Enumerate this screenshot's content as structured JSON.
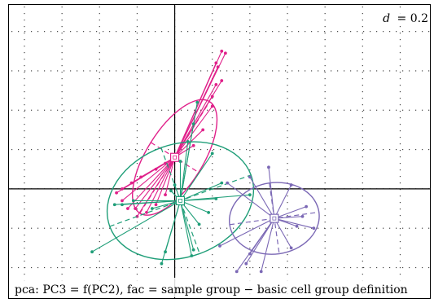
{
  "chart_data": {
    "type": "scatter",
    "title": "",
    "caption": "pca: PC3 = f(PC2), fac = sample group − basic cell group definition",
    "grid_label": "d = 0.2",
    "grid_label_var": "d",
    "grid_label_value": "= 0.2",
    "grid_step": 0.2,
    "xlim": [
      -0.93,
      1.38
    ],
    "ylim": [
      -0.58,
      0.96
    ],
    "grid": true,
    "series": [
      {
        "color": "#e0208a",
        "centroid": [
          0.0,
          0.16
        ],
        "ellipse": {
          "center": [
            0.0,
            0.16
          ],
          "semi_major": 0.35,
          "semi_minor": 0.15,
          "angle_deg": 58
        },
        "points": [
          [
            0.25,
            0.7
          ],
          [
            0.27,
            0.69
          ],
          [
            0.22,
            0.64
          ],
          [
            0.23,
            0.62
          ],
          [
            0.25,
            0.55
          ],
          [
            0.22,
            0.53
          ],
          [
            0.2,
            0.47
          ],
          [
            0.2,
            0.42
          ],
          [
            0.15,
            0.3
          ],
          [
            0.1,
            0.22
          ],
          [
            0.03,
            0.21
          ],
          [
            -0.05,
            0.13
          ],
          [
            -0.1,
            0.1
          ],
          [
            -0.18,
            0.06
          ],
          [
            -0.23,
            0.03
          ],
          [
            -0.28,
            0.0
          ],
          [
            -0.31,
            -0.02
          ],
          [
            -0.28,
            -0.06
          ],
          [
            -0.25,
            -0.1
          ],
          [
            -0.21,
            -0.1
          ],
          [
            -0.2,
            -0.14
          ],
          [
            -0.15,
            -0.12
          ],
          [
            -0.1,
            -0.08
          ],
          [
            -0.05,
            -0.03
          ]
        ]
      },
      {
        "color": "#1f9e78",
        "centroid": [
          0.03,
          -0.06
        ],
        "ellipse": {
          "center": [
            0.03,
            -0.06
          ],
          "semi_major": 0.4,
          "semi_minor": 0.3,
          "angle_deg": 20
        },
        "points": [
          [
            0.12,
            0.44
          ],
          [
            0.1,
            0.33
          ],
          [
            0.07,
            0.24
          ],
          [
            0.03,
            0.14
          ],
          [
            0.2,
            0.18
          ],
          [
            0.25,
            0.03
          ],
          [
            0.22,
            -0.05
          ],
          [
            0.4,
            -0.03
          ],
          [
            0.18,
            -0.12
          ],
          [
            0.13,
            -0.18
          ],
          [
            0.1,
            -0.31
          ],
          [
            0.09,
            -0.34
          ],
          [
            -0.05,
            -0.32
          ],
          [
            -0.07,
            -0.38
          ],
          [
            -0.44,
            -0.32
          ],
          [
            -0.32,
            -0.08
          ],
          [
            -0.28,
            -0.08
          ],
          [
            -0.22,
            -0.06
          ],
          [
            -0.12,
            -0.1
          ],
          [
            0.0,
            0.02
          ],
          [
            -0.02,
            -0.01
          ]
        ]
      },
      {
        "color": "#7b68b5",
        "centroid": [
          0.53,
          -0.15
        ],
        "ellipse": {
          "center": [
            0.53,
            -0.15
          ],
          "semi_major": 0.24,
          "semi_minor": 0.19,
          "angle_deg": 8
        },
        "points": [
          [
            0.5,
            0.11
          ],
          [
            0.4,
            0.06
          ],
          [
            0.28,
            0.03
          ],
          [
            0.62,
            0.02
          ],
          [
            0.7,
            -0.09
          ],
          [
            0.68,
            -0.14
          ],
          [
            0.65,
            -0.19
          ],
          [
            0.74,
            -0.2
          ],
          [
            0.62,
            -0.3
          ],
          [
            0.4,
            -0.33
          ],
          [
            0.38,
            -0.38
          ],
          [
            0.46,
            -0.42
          ],
          [
            0.33,
            -0.42
          ],
          [
            0.24,
            -0.29
          ]
        ]
      }
    ]
  }
}
